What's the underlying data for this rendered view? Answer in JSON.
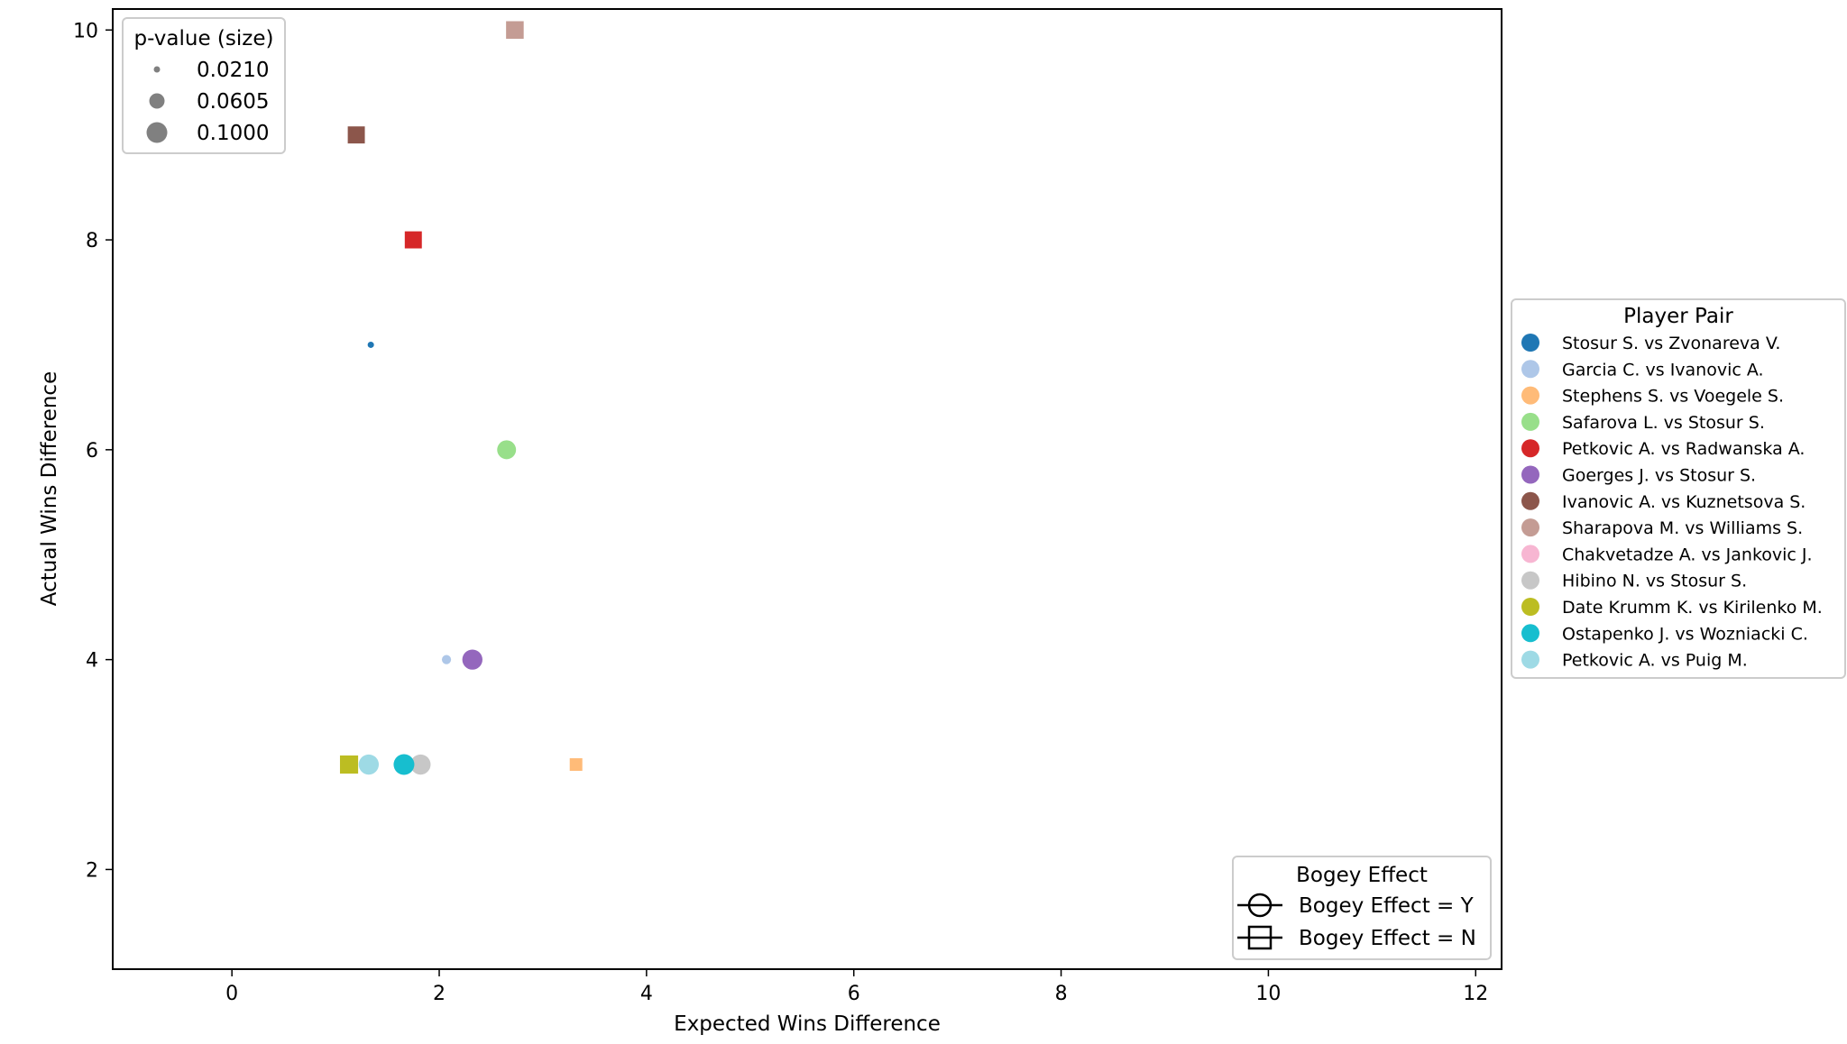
{
  "chart_data": {
    "type": "scatter",
    "xlabel": "Expected Wins Difference",
    "ylabel": "Actual Wins Difference",
    "xlim": [
      -1.15,
      12.25
    ],
    "ylim": [
      1.05,
      10.2
    ],
    "x_ticks": [
      0,
      2,
      4,
      6,
      8,
      10,
      12
    ],
    "y_ticks": [
      2,
      4,
      6,
      8,
      10
    ],
    "grid": false,
    "size_legend": {
      "title": "p-value (size)",
      "placement": "top-left",
      "entries": [
        {
          "label": "0.0210",
          "p": 0.021
        },
        {
          "label": "0.0605",
          "p": 0.0605
        },
        {
          "label": "0.1000",
          "p": 0.1
        }
      ]
    },
    "color_legend": {
      "title": "Player Pair",
      "placement": "outside right"
    },
    "marker_legend": {
      "title": "Bogey Effect",
      "placement": "lower-right",
      "entries": [
        {
          "label": "Bogey Effect = Y",
          "marker": "circle"
        },
        {
          "label": "Bogey Effect = N",
          "marker": "square"
        }
      ]
    },
    "series": [
      {
        "name": "Stosur S. vs Zvonareva V.",
        "color": "#1f77b4",
        "x": 1.34,
        "y": 7,
        "p": 0.021,
        "bogey": "Y"
      },
      {
        "name": "Garcia C. vs Ivanovic A.",
        "color": "#aec7e8",
        "x": 2.07,
        "y": 4,
        "p": 0.03,
        "bogey": "Y"
      },
      {
        "name": "Stephens S. vs Voegele S.",
        "color": "#ffbb78",
        "x": 3.32,
        "y": 3,
        "p": 0.055,
        "bogey": "N"
      },
      {
        "name": "Safarova L. vs Stosur S.",
        "color": "#98df8a",
        "x": 2.65,
        "y": 6,
        "p": 0.085,
        "bogey": "Y"
      },
      {
        "name": "Petkovic A. vs Radwanska A.",
        "color": "#d62728",
        "x": 1.75,
        "y": 8,
        "p": 0.09,
        "bogey": "N"
      },
      {
        "name": "Goerges J. vs Stosur S.",
        "color": "#9467bd",
        "x": 2.32,
        "y": 4,
        "p": 0.095,
        "bogey": "Y"
      },
      {
        "name": "Ivanovic A. vs Kuznetsova S.",
        "color": "#8c564b",
        "x": 1.2,
        "y": 9,
        "p": 0.09,
        "bogey": "N"
      },
      {
        "name": "Sharapova M. vs Williams S.",
        "color": "#c49c94",
        "x": 2.73,
        "y": 10,
        "p": 0.095,
        "bogey": "N"
      },
      {
        "name": "Chakvetadze A. vs Jankovic J.",
        "color": "#f7b6d2",
        "x": null,
        "y": null,
        "p": null,
        "bogey": null
      },
      {
        "name": "Hibino N. vs Stosur S.",
        "color": "#c7c7c7",
        "x": 1.82,
        "y": 3,
        "p": 0.095,
        "bogey": "Y"
      },
      {
        "name": "Date Krumm K. vs Kirilenko M.",
        "color": "#bcbd22",
        "x": 1.13,
        "y": 3,
        "p": 0.1,
        "bogey": "N"
      },
      {
        "name": "Ostapenko J. vs Wozniacki C.",
        "color": "#17becf",
        "x": 1.66,
        "y": 3,
        "p": 0.1,
        "bogey": "Y"
      },
      {
        "name": "Petkovic A. vs Puig M.",
        "color": "#9edae5",
        "x": 1.32,
        "y": 3,
        "p": 0.095,
        "bogey": "Y"
      }
    ]
  }
}
